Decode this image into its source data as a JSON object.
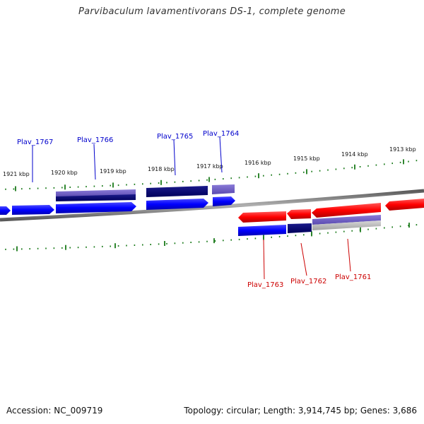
{
  "header": {
    "title": "Parvibaculum lavamentivorans DS-1, complete genome"
  },
  "footer": {
    "accession": "Accession: NC_009719",
    "summary": "Topology: circular; Length: 3,914,745 bp; Genes: 3,686"
  },
  "colors": {
    "forward_strand": "#0000ff",
    "reverse_strand": "#ff0000",
    "tick": "#1a7a1a",
    "backbone": "#808080",
    "forward_label": "#0000cc",
    "reverse_label": "#cc0000"
  },
  "tick_labels": [
    "1921 kbp",
    "1920 kbp",
    "1919 kbp",
    "1918 kbp",
    "1917 kbp",
    "1916 kbp",
    "1915 kbp",
    "1914 kbp",
    "1913 kbp"
  ],
  "genes_forward": [
    "Plav_1767",
    "Plav_1766",
    "Plav_1765",
    "Plav_1764"
  ],
  "genes_reverse": [
    "Plav_1763",
    "Plav_1762",
    "Plav_1761"
  ]
}
